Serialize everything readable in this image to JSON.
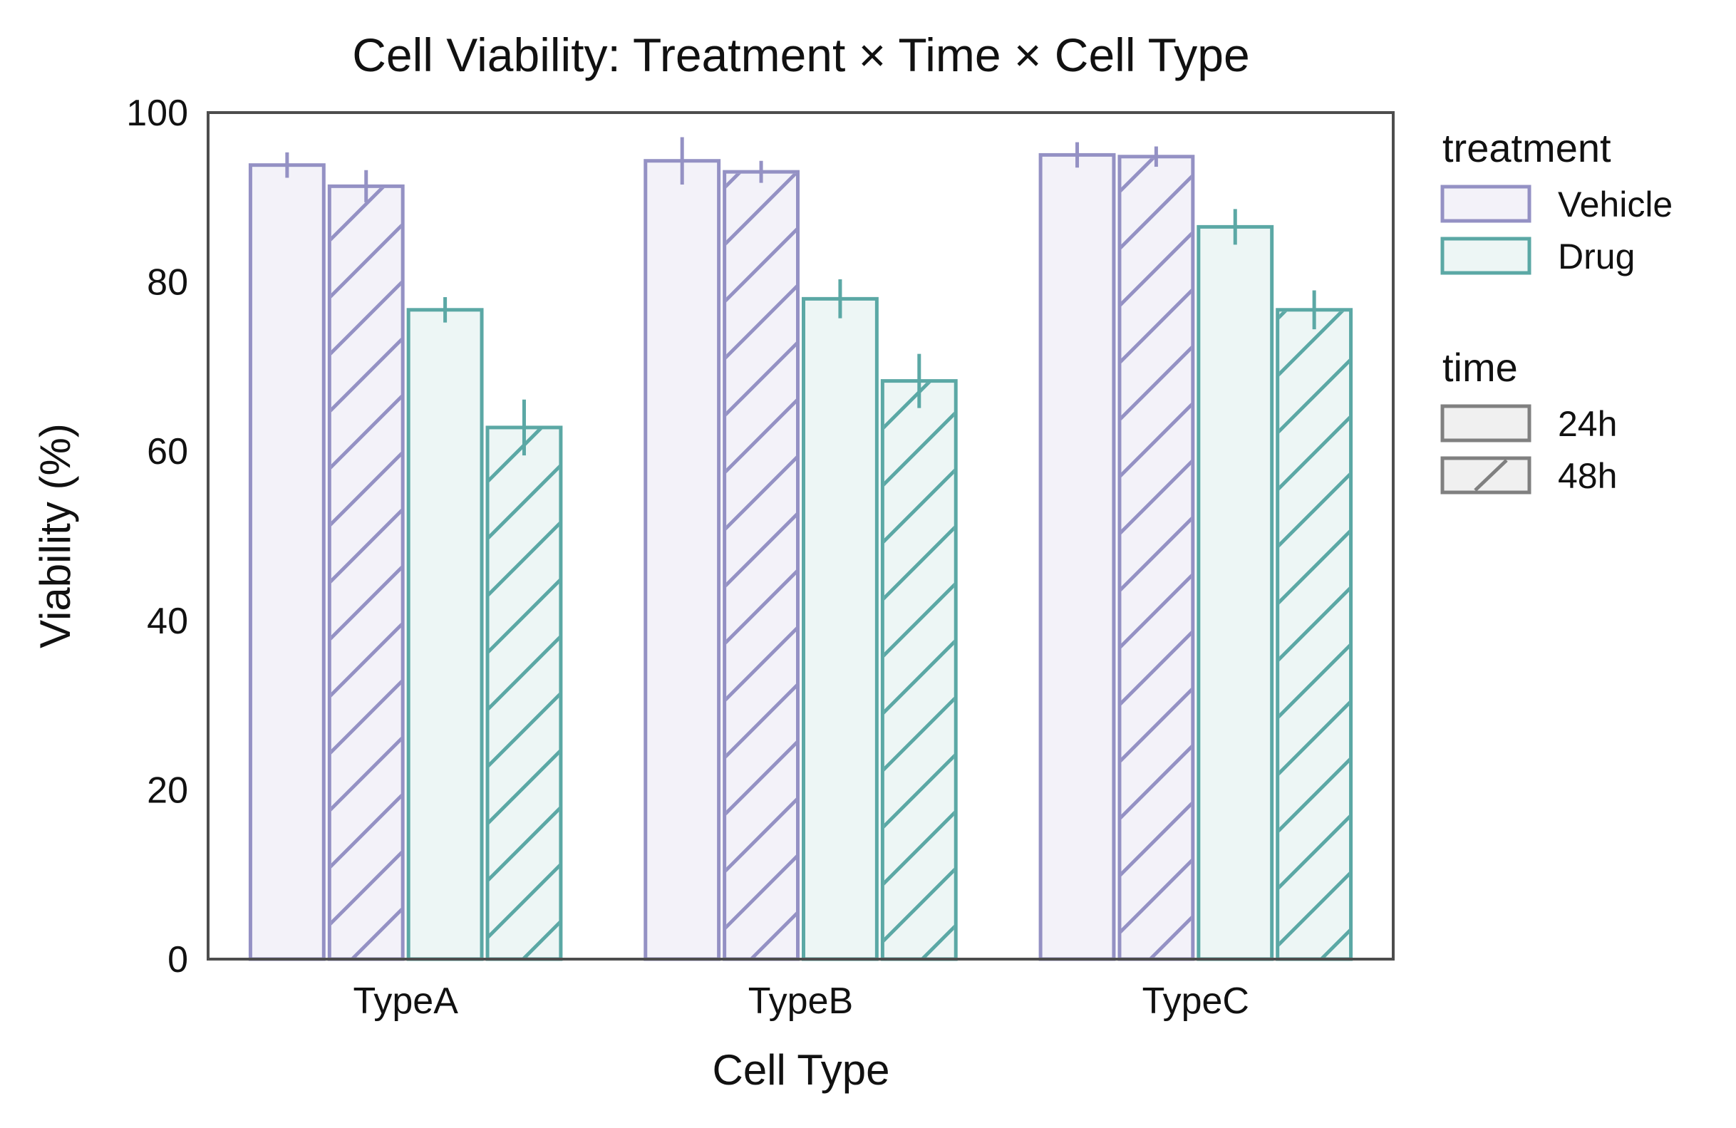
{
  "chart_data": {
    "type": "bar",
    "title": "Cell Viability: Treatment × Time × Cell Type",
    "xlabel": "Cell Type",
    "ylabel": "Viability (%)",
    "ylim": [
      0,
      100
    ],
    "yticks": [
      0,
      20,
      40,
      60,
      80,
      100
    ],
    "categories": [
      "TypeA",
      "TypeB",
      "TypeC"
    ],
    "grid": false,
    "legend_position": "outside-right",
    "series": [
      {
        "treatment": "Vehicle",
        "time": "24h",
        "color": "#9491c4",
        "fill": "#f3f2f9",
        "hatch": false,
        "values": [
          93.8,
          94.3,
          95.0
        ],
        "errors": [
          1.5,
          2.8,
          1.5
        ]
      },
      {
        "treatment": "Vehicle",
        "time": "48h",
        "color": "#9491c4",
        "fill": "#f3f2f9",
        "hatch": true,
        "values": [
          91.3,
          93.0,
          94.8
        ],
        "errors": [
          1.9,
          1.3,
          1.2
        ]
      },
      {
        "treatment": "Drug",
        "time": "24h",
        "color": "#5ba8a5",
        "fill": "#edf6f5",
        "hatch": false,
        "values": [
          76.7,
          78.0,
          86.5
        ],
        "errors": [
          1.5,
          2.3,
          2.1
        ]
      },
      {
        "treatment": "Drug",
        "time": "48h",
        "color": "#5ba8a5",
        "fill": "#edf6f5",
        "hatch": true,
        "values": [
          62.8,
          68.3,
          76.7
        ],
        "errors": [
          3.3,
          3.2,
          2.3
        ]
      }
    ],
    "legend": {
      "treatment_title": "treatment",
      "treatment": [
        {
          "label": "Vehicle",
          "color": "#9491c4",
          "fill": "#f3f2f9"
        },
        {
          "label": "Drug",
          "color": "#5ba8a5",
          "fill": "#edf6f5"
        }
      ],
      "time_title": "time",
      "time": [
        {
          "label": "24h",
          "hatch": false
        },
        {
          "label": "48h",
          "hatch": true
        }
      ],
      "neutral_color": "#808080",
      "neutral_fill": "#f0f0f0"
    }
  }
}
